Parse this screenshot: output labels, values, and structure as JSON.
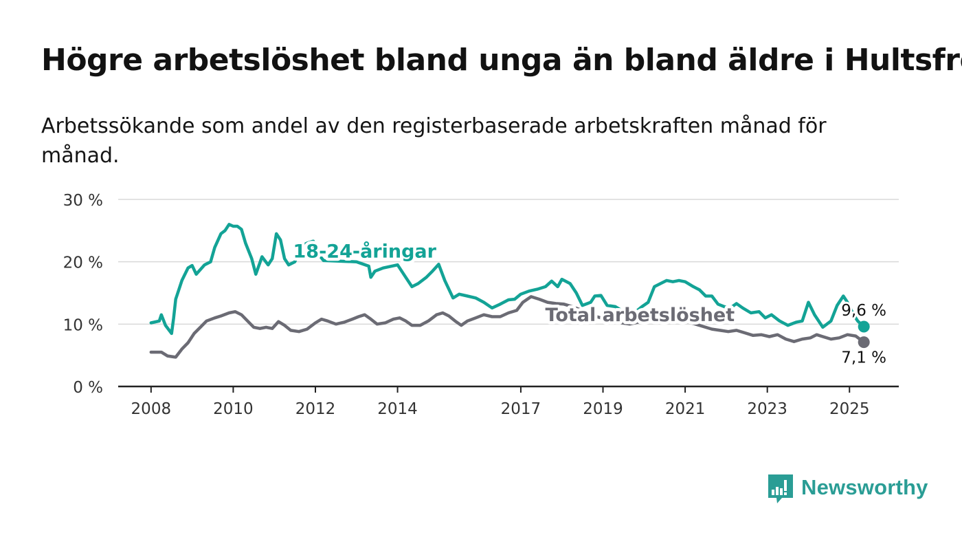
{
  "title": "Högre arbetslöshet bland unga än bland äldre i Hultsfred",
  "subtitle": "Arbetssökande som andel av den registerbaserade arbetskraften månad för månad.",
  "brand": {
    "name": "Newsworthy",
    "icon": "newsworthy-logo-icon",
    "color": "#2a9d95"
  },
  "chart_data": {
    "type": "line",
    "title": "Högre arbetslöshet bland unga än bland äldre i Hultsfred",
    "subtitle": "Arbetssökande som andel av den registerbaserade arbetskraften månad för månad.",
    "xlabel": "",
    "ylabel": "",
    "x_range": [
      2007.2,
      2026.2
    ],
    "x_ticks": [
      2008,
      2010,
      2012,
      2014,
      2017,
      2019,
      2021,
      2023,
      2025
    ],
    "ylim": [
      0,
      30
    ],
    "y_ticks": [
      0,
      10,
      20,
      30
    ],
    "y_tick_labels": [
      "0 %",
      "10 %",
      "20 %",
      "30 %"
    ],
    "grid": "horizontal",
    "legend": "inline labels",
    "series": [
      {
        "name": "18-24-åringar",
        "color": "#13a396",
        "end_label": "9,6 %",
        "points": [
          [
            2008.0,
            10.2
          ],
          [
            2008.2,
            10.5
          ],
          [
            2008.25,
            11.5
          ],
          [
            2008.35,
            9.8
          ],
          [
            2008.5,
            8.5
          ],
          [
            2008.55,
            11.0
          ],
          [
            2008.6,
            14.0
          ],
          [
            2008.75,
            17.0
          ],
          [
            2008.9,
            19.0
          ],
          [
            2009.0,
            19.4
          ],
          [
            2009.1,
            18.0
          ],
          [
            2009.3,
            19.5
          ],
          [
            2009.45,
            20.0
          ],
          [
            2009.55,
            22.3
          ],
          [
            2009.7,
            24.5
          ],
          [
            2009.8,
            25.0
          ],
          [
            2009.9,
            26.0
          ],
          [
            2010.0,
            25.7
          ],
          [
            2010.1,
            25.7
          ],
          [
            2010.2,
            25.2
          ],
          [
            2010.3,
            23.0
          ],
          [
            2010.45,
            20.5
          ],
          [
            2010.55,
            18.0
          ],
          [
            2010.7,
            20.8
          ],
          [
            2010.85,
            19.5
          ],
          [
            2010.95,
            20.5
          ],
          [
            2011.05,
            24.5
          ],
          [
            2011.15,
            23.5
          ],
          [
            2011.25,
            20.5
          ],
          [
            2011.35,
            19.5
          ],
          [
            2011.5,
            20.0
          ],
          [
            2011.65,
            22.5
          ],
          [
            2011.8,
            23.0
          ],
          [
            2011.95,
            23.3
          ],
          [
            2012.0,
            21.5
          ],
          [
            2012.1,
            21.0
          ],
          [
            2012.2,
            20.2
          ],
          [
            2013.0,
            20.0
          ],
          [
            2013.3,
            19.3
          ],
          [
            2013.35,
            17.5
          ],
          [
            2013.45,
            18.5
          ],
          [
            2013.65,
            19.0
          ],
          [
            2014.0,
            19.5
          ],
          [
            2014.2,
            17.5
          ],
          [
            2014.35,
            16.0
          ],
          [
            2014.5,
            16.5
          ],
          [
            2014.7,
            17.5
          ],
          [
            2014.85,
            18.5
          ],
          [
            2015.0,
            19.6
          ],
          [
            2015.15,
            17.0
          ],
          [
            2015.35,
            14.2
          ],
          [
            2015.5,
            14.8
          ],
          [
            2015.7,
            14.5
          ],
          [
            2015.9,
            14.2
          ],
          [
            2016.1,
            13.5
          ],
          [
            2016.3,
            12.6
          ],
          [
            2016.5,
            13.2
          ],
          [
            2016.7,
            13.9
          ],
          [
            2016.85,
            14.0
          ],
          [
            2017.0,
            14.8
          ],
          [
            2017.2,
            15.3
          ],
          [
            2017.4,
            15.6
          ],
          [
            2017.6,
            16.0
          ],
          [
            2017.75,
            16.9
          ],
          [
            2017.9,
            16.0
          ],
          [
            2018.0,
            17.2
          ],
          [
            2018.2,
            16.5
          ],
          [
            2018.35,
            15.0
          ],
          [
            2018.5,
            13.0
          ],
          [
            2018.7,
            13.5
          ],
          [
            2018.8,
            14.5
          ],
          [
            2018.95,
            14.6
          ],
          [
            2019.1,
            13.0
          ],
          [
            2019.3,
            12.8
          ],
          [
            2019.5,
            12.0
          ],
          [
            2019.65,
            12.2
          ],
          [
            2019.8,
            12.0
          ],
          [
            2019.95,
            12.8
          ],
          [
            2020.1,
            13.5
          ],
          [
            2020.25,
            16.0
          ],
          [
            2020.4,
            16.5
          ],
          [
            2020.55,
            17.0
          ],
          [
            2020.7,
            16.8
          ],
          [
            2020.85,
            17.0
          ],
          [
            2021.0,
            16.8
          ],
          [
            2021.2,
            16.0
          ],
          [
            2021.35,
            15.5
          ],
          [
            2021.5,
            14.5
          ],
          [
            2021.65,
            14.5
          ],
          [
            2021.8,
            13.2
          ],
          [
            2021.95,
            12.8
          ],
          [
            2022.1,
            12.6
          ],
          [
            2022.25,
            13.3
          ],
          [
            2022.4,
            12.6
          ],
          [
            2022.6,
            11.8
          ],
          [
            2022.8,
            12.0
          ],
          [
            2022.95,
            11.0
          ],
          [
            2023.1,
            11.5
          ],
          [
            2023.3,
            10.5
          ],
          [
            2023.5,
            9.8
          ],
          [
            2023.7,
            10.3
          ],
          [
            2023.85,
            10.5
          ],
          [
            2024.0,
            13.5
          ],
          [
            2024.15,
            11.5
          ],
          [
            2024.35,
            9.5
          ],
          [
            2024.55,
            10.5
          ],
          [
            2024.7,
            13.0
          ],
          [
            2024.85,
            14.5
          ],
          [
            2024.95,
            13.5
          ],
          [
            2025.1,
            11.5
          ],
          [
            2025.2,
            10.5
          ],
          [
            2025.35,
            9.6
          ]
        ]
      },
      {
        "name": "Total arbetslöshet",
        "color": "#6b6b74",
        "end_label": "7,1 %",
        "points": [
          [
            2008.0,
            5.5
          ],
          [
            2008.25,
            5.5
          ],
          [
            2008.4,
            4.9
          ],
          [
            2008.6,
            4.7
          ],
          [
            2008.75,
            6.0
          ],
          [
            2008.9,
            7.0
          ],
          [
            2009.05,
            8.5
          ],
          [
            2009.2,
            9.5
          ],
          [
            2009.35,
            10.5
          ],
          [
            2009.55,
            11.0
          ],
          [
            2009.7,
            11.3
          ],
          [
            2009.9,
            11.8
          ],
          [
            2010.05,
            12.0
          ],
          [
            2010.2,
            11.5
          ],
          [
            2010.35,
            10.5
          ],
          [
            2010.5,
            9.5
          ],
          [
            2010.65,
            9.3
          ],
          [
            2010.8,
            9.5
          ],
          [
            2010.95,
            9.3
          ],
          [
            2011.1,
            10.4
          ],
          [
            2011.25,
            9.8
          ],
          [
            2011.4,
            9.0
          ],
          [
            2011.6,
            8.8
          ],
          [
            2011.8,
            9.2
          ],
          [
            2012.0,
            10.2
          ],
          [
            2012.15,
            10.8
          ],
          [
            2012.3,
            10.5
          ],
          [
            2012.5,
            10.0
          ],
          [
            2012.7,
            10.3
          ],
          [
            2012.9,
            10.8
          ],
          [
            2013.05,
            11.2
          ],
          [
            2013.2,
            11.5
          ],
          [
            2013.35,
            10.8
          ],
          [
            2013.5,
            10.0
          ],
          [
            2013.7,
            10.2
          ],
          [
            2013.9,
            10.8
          ],
          [
            2014.05,
            11.0
          ],
          [
            2014.2,
            10.5
          ],
          [
            2014.35,
            9.8
          ],
          [
            2014.55,
            9.8
          ],
          [
            2014.75,
            10.5
          ],
          [
            2014.95,
            11.5
          ],
          [
            2015.1,
            11.8
          ],
          [
            2015.25,
            11.3
          ],
          [
            2015.4,
            10.5
          ],
          [
            2015.55,
            9.8
          ],
          [
            2015.7,
            10.5
          ],
          [
            2015.9,
            11.0
          ],
          [
            2016.1,
            11.5
          ],
          [
            2016.3,
            11.2
          ],
          [
            2016.5,
            11.2
          ],
          [
            2016.7,
            11.8
          ],
          [
            2016.9,
            12.2
          ],
          [
            2017.05,
            13.5
          ],
          [
            2017.25,
            14.4
          ],
          [
            2017.45,
            14.0
          ],
          [
            2017.65,
            13.5
          ],
          [
            2017.85,
            13.3
          ],
          [
            2018.05,
            13.2
          ],
          [
            2018.25,
            12.8
          ],
          [
            2018.45,
            12.3
          ],
          [
            2018.65,
            11.8
          ],
          [
            2018.85,
            11.2
          ],
          [
            2019.05,
            10.8
          ],
          [
            2019.25,
            10.5
          ],
          [
            2019.45,
            10.2
          ],
          [
            2019.65,
            10.0
          ],
          [
            2019.85,
            10.3
          ],
          [
            2020.05,
            10.8
          ],
          [
            2020.25,
            11.0
          ],
          [
            2020.45,
            11.2
          ],
          [
            2020.65,
            10.9
          ],
          [
            2020.85,
            10.7
          ],
          [
            2021.05,
            10.4
          ],
          [
            2021.25,
            10.0
          ],
          [
            2021.45,
            9.6
          ],
          [
            2021.65,
            9.2
          ],
          [
            2021.85,
            9.0
          ],
          [
            2022.05,
            8.8
          ],
          [
            2022.25,
            9.0
          ],
          [
            2022.45,
            8.6
          ],
          [
            2022.65,
            8.2
          ],
          [
            2022.85,
            8.3
          ],
          [
            2023.05,
            8.0
          ],
          [
            2023.25,
            8.3
          ],
          [
            2023.45,
            7.6
          ],
          [
            2023.65,
            7.2
          ],
          [
            2023.85,
            7.6
          ],
          [
            2024.05,
            7.8
          ],
          [
            2024.2,
            8.3
          ],
          [
            2024.35,
            8.0
          ],
          [
            2024.55,
            7.6
          ],
          [
            2024.75,
            7.8
          ],
          [
            2024.95,
            8.3
          ],
          [
            2025.15,
            8.1
          ],
          [
            2025.35,
            7.1
          ]
        ]
      }
    ],
    "annotations": [
      {
        "text": "18-24-åringar",
        "series": 0,
        "x": 2013.2,
        "y": 20.7
      },
      {
        "text": "Total arbetslöshet",
        "series": 1,
        "x": 2019.9,
        "y": 10.5
      }
    ]
  }
}
